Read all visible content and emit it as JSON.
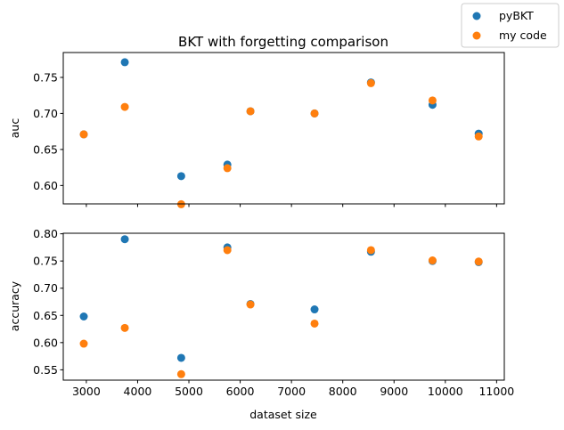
{
  "colors": {
    "pybkt": "#1f77b4",
    "mycode": "#ff7f0e",
    "frame": "#000000",
    "legend_border": "#cccccc"
  },
  "legend": {
    "placement": "top-right",
    "entries": [
      "pyBKT",
      "my code"
    ]
  },
  "chart_data": [
    {
      "type": "scatter",
      "title": "BKT with forgetting comparison",
      "xlabel": "",
      "ylabel": "auc",
      "xlim": [
        2550,
        11150
      ],
      "ylim": [
        0.5745,
        0.7845
      ],
      "yticks": [
        0.6,
        0.65,
        0.7,
        0.75
      ],
      "ytick_labels": [
        "0.60",
        "0.65",
        "0.70",
        "0.75"
      ],
      "xticks": [
        3000,
        4000,
        5000,
        6000,
        7000,
        8000,
        9000,
        10000,
        11000
      ],
      "show_xtick_labels": false,
      "grid": false,
      "series": [
        {
          "name": "pyBKT",
          "x": [
            2950,
            3750,
            4850,
            5750,
            6200,
            7450,
            8550,
            9750,
            10650
          ],
          "y": [
            0.671,
            0.771,
            0.613,
            0.629,
            0.703,
            0.7,
            0.743,
            0.712,
            0.672
          ]
        },
        {
          "name": "my code",
          "x": [
            2950,
            3750,
            4850,
            5750,
            6200,
            7450,
            8550,
            9750,
            10650
          ],
          "y": [
            0.671,
            0.709,
            0.574,
            0.624,
            0.703,
            0.7,
            0.742,
            0.718,
            0.668
          ]
        }
      ]
    },
    {
      "type": "scatter",
      "title": "",
      "xlabel": "dataset size",
      "ylabel": "accuracy",
      "xlim": [
        2550,
        11150
      ],
      "ylim": [
        0.531,
        0.801
      ],
      "yticks": [
        0.55,
        0.6,
        0.65,
        0.7,
        0.75,
        0.8
      ],
      "ytick_labels": [
        "0.55",
        "0.60",
        "0.65",
        "0.70",
        "0.75",
        "0.80"
      ],
      "xticks": [
        3000,
        4000,
        5000,
        6000,
        7000,
        8000,
        9000,
        10000,
        11000
      ],
      "xtick_labels": [
        "3000",
        "4000",
        "5000",
        "6000",
        "7000",
        "8000",
        "9000",
        "10000",
        "11000"
      ],
      "show_xtick_labels": true,
      "grid": false,
      "series": [
        {
          "name": "pyBKT",
          "x": [
            2950,
            3750,
            4850,
            5750,
            6200,
            7450,
            8550,
            9750,
            10650
          ],
          "y": [
            0.648,
            0.79,
            0.572,
            0.775,
            0.671,
            0.661,
            0.767,
            0.75,
            0.748
          ]
        },
        {
          "name": "my code",
          "x": [
            2950,
            3750,
            4850,
            5750,
            6200,
            7450,
            8550,
            9750,
            10650
          ],
          "y": [
            0.598,
            0.627,
            0.542,
            0.77,
            0.67,
            0.635,
            0.77,
            0.751,
            0.749
          ]
        }
      ]
    }
  ]
}
